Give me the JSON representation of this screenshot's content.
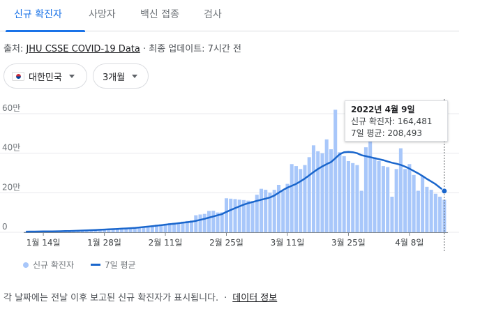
{
  "tabs": [
    {
      "label": "신규 확진자",
      "active": true
    },
    {
      "label": "사망자",
      "active": false
    },
    {
      "label": "백신 접종",
      "active": false
    },
    {
      "label": "검사",
      "active": false
    }
  ],
  "source": {
    "prefix": "출처: ",
    "link": "JHU CSSE COVID-19 Data",
    "updated": " · 최종 업데이트: 7시간 전"
  },
  "filters": {
    "country": "대한민국",
    "country_flag_icon": "korea-flag-icon",
    "period": "3개월"
  },
  "tooltip": {
    "date": "2022년 4월 9일",
    "cases_label": "신규 확진자: 164,481",
    "avg_label": "7일 평균: 208,493"
  },
  "legend": {
    "bars": "신규 확진자",
    "line": "7일 평균"
  },
  "footer": {
    "note": "각 날짜에는 전날 이후 보고된 신규 확진자가 표시됩니다.",
    "link": "데이터 정보"
  },
  "colors": {
    "bar": "#a8c7fa",
    "line": "#1a66cc",
    "accent": "#1a73e8"
  },
  "chart_data": {
    "type": "bar",
    "x_start": "2022-01-10",
    "ytick_labels": [
      "0",
      "20만",
      "40만",
      "60만"
    ],
    "ytick_values": [
      0,
      200000,
      400000,
      600000
    ],
    "ylim": [
      0,
      650000
    ],
    "xtick_labels": [
      "1월 14일",
      "1월 28일",
      "2월 11일",
      "2월 25일",
      "3월 11일",
      "3월 25일",
      "4월 8일"
    ],
    "xtick_indices": [
      4,
      18,
      32,
      46,
      60,
      74,
      88
    ],
    "series": [
      {
        "name": "신규 확진자",
        "type": "bar",
        "values": [
          3000,
          4000,
          4100,
          3900,
          4200,
          4400,
          4000,
          5000,
          5800,
          6200,
          7000,
          7500,
          8500,
          9500,
          11000,
          12000,
          13000,
          14000,
          15000,
          16000,
          17000,
          18500,
          20000,
          21000,
          23000,
          26000,
          28000,
          30000,
          32000,
          35000,
          38000,
          40000,
          43000,
          46000,
          48000,
          50000,
          54000,
          57000,
          60000,
          86000,
          90000,
          93000,
          108000,
          109000,
          100000,
          101000,
          172000,
          170000,
          168000,
          165000,
          163000,
          160000,
          158000,
          190000,
          220000,
          215000,
          200000,
          215000,
          240000,
          210000,
          245000,
          345000,
          335000,
          320000,
          340000,
          380000,
          440000,
          410000,
          400000,
          470000,
          420000,
          620000,
          405000,
          385000,
          360000,
          350000,
          340000,
          210000,
          430000,
          490000,
          380000,
          360000,
          335000,
          330000,
          180000,
          320000,
          425000,
          320000,
          345000,
          290000,
          210000,
          285000,
          230000,
          215000,
          195000,
          180000,
          164481
        ]
      },
      {
        "name": "7일 평균",
        "type": "line",
        "values": [
          3200,
          3400,
          3700,
          3900,
          4100,
          4300,
          4500,
          4900,
          5400,
          5900,
          6500,
          7100,
          7900,
          8700,
          9700,
          10700,
          11800,
          12800,
          13900,
          14900,
          15900,
          17000,
          18200,
          19400,
          20700,
          22400,
          24300,
          26400,
          28600,
          31000,
          33400,
          35800,
          38300,
          40800,
          43300,
          45800,
          48400,
          51000,
          53600,
          58000,
          63000,
          68000,
          74000,
          80000,
          86000,
          92000,
          103000,
          113000,
          122000,
          131000,
          140000,
          147000,
          153000,
          159000,
          165000,
          170000,
          176000,
          186000,
          200000,
          214000,
          226000,
          235000,
          245000,
          258000,
          272000,
          288000,
          305000,
          320000,
          333000,
          345000,
          355000,
          375000,
          395000,
          405000,
          407000,
          405000,
          400000,
          390000,
          385000,
          380000,
          375000,
          370000,
          365000,
          358000,
          352000,
          347000,
          341000,
          332000,
          322000,
          310000,
          298000,
          285000,
          270000,
          257000,
          243000,
          226000,
          208493
        ]
      }
    ]
  }
}
